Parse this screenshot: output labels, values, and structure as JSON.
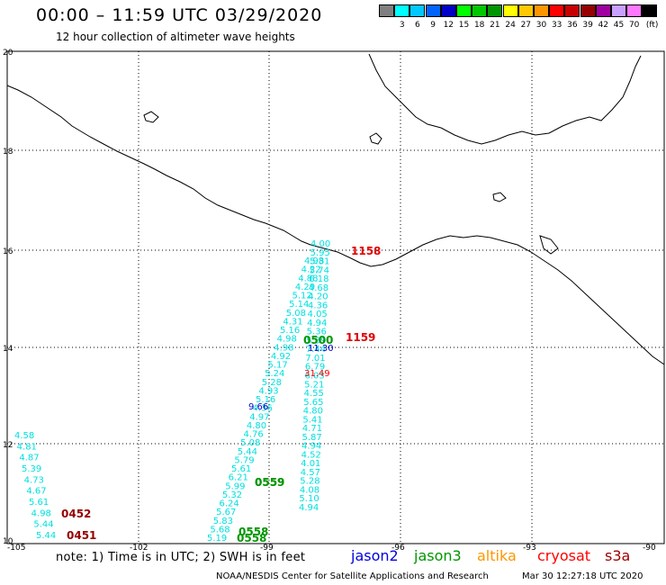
{
  "header": {
    "title": "00:00 – 11:59 UTC 03/29/2020",
    "subtitle": "12 hour collection of altimeter wave heights"
  },
  "legend": {
    "unit": "(ft)",
    "bins": [
      {
        "label": "",
        "color": "#808080"
      },
      {
        "label": "3",
        "color": "#00ffff"
      },
      {
        "label": "6",
        "color": "#00c8ff"
      },
      {
        "label": "9",
        "color": "#0064ff"
      },
      {
        "label": "12",
        "color": "#0000c8"
      },
      {
        "label": "15",
        "color": "#00ff00"
      },
      {
        "label": "18",
        "color": "#00c800"
      },
      {
        "label": "21",
        "color": "#009600"
      },
      {
        "label": "24",
        "color": "#ffff00"
      },
      {
        "label": "27",
        "color": "#ffc800"
      },
      {
        "label": "30",
        "color": "#ff9600"
      },
      {
        "label": "33",
        "color": "#ff0000"
      },
      {
        "label": "36",
        "color": "#c80000"
      },
      {
        "label": "39",
        "color": "#960000"
      },
      {
        "label": "42",
        "color": "#a000a0"
      },
      {
        "label": "45",
        "color": "#c8a0ff"
      },
      {
        "label": "70",
        "color": "#ff78ff"
      },
      {
        "label": "",
        "color": "#000000"
      }
    ]
  },
  "axes": {
    "lat_labels": [
      "20",
      "18",
      "16",
      "14",
      "12",
      "10"
    ],
    "lon_labels": [
      "-105",
      "-102",
      "-99",
      "-96",
      "-93",
      "-90"
    ]
  },
  "tracks": {
    "track_a": {
      "color": "#00e0e0",
      "values": [
        "4.00",
        "5.95",
        "5.31",
        "5.74",
        "6.18",
        "4.68",
        "4.20",
        "4.36",
        "4.05",
        "4.94",
        "5.36",
        "5.39",
        "7.44",
        "7.01",
        "6.79",
        "6.03",
        "5.21",
        "4.55",
        "5.65",
        "4.80",
        "5.41",
        "4.71",
        "5.87",
        "4.94",
        "4.52",
        "4.01",
        "4.57",
        "5.28",
        "4.08",
        "5.10",
        "4.94"
      ],
      "time_labels": [
        {
          "text": "1158",
          "color": "#e00000"
        },
        {
          "text": "1159",
          "color": "#e00000"
        },
        {
          "text": "0500",
          "color": "#009600"
        }
      ]
    },
    "track_b": {
      "color": "#00e0e0",
      "values": [
        "4.98",
        "4.22",
        "4.88",
        "4.29",
        "5.12",
        "5.14",
        "5.08",
        "4.31",
        "5.16",
        "4.98",
        "4.98",
        "4.92",
        "5.17",
        "5.24",
        "5.28",
        "4.93",
        "5.16",
        "4.36",
        "4.97",
        "4.80",
        "4.76",
        "5.08",
        "5.44",
        "5.79",
        "5.61",
        "6.21",
        "5.99",
        "5.32",
        "6.24",
        "5.67",
        "5.83",
        "5.68",
        "5.19"
      ],
      "time_labels": [
        {
          "text": "0559",
          "color": "#009600"
        },
        {
          "text": "0558",
          "color": "#009600"
        }
      ]
    },
    "track_c": {
      "color": "#00e0e0",
      "values": [
        "4.58",
        "4.81",
        "4.87",
        "5.39",
        "4.73",
        "4.67",
        "5.61",
        "4.98",
        "5.44",
        "5.44"
      ],
      "time_labels": [
        {
          "text": "0452",
          "color": "#960000"
        },
        {
          "text": "0451",
          "color": "#960000"
        }
      ]
    },
    "special_values": [
      {
        "text": "11.30",
        "color": "#0000c8"
      },
      {
        "text": "31.49",
        "color": "#ff0000"
      },
      {
        "text": "9.66",
        "color": "#0000c8"
      }
    ]
  },
  "footer": {
    "note": "note:  1) Time is in UTC;  2) SWH is in feet",
    "satellites": [
      {
        "name": "jason2",
        "color": "#0000e0"
      },
      {
        "name": "jason3",
        "color": "#009600"
      },
      {
        "name": "altika",
        "color": "#ff9600"
      },
      {
        "name": "cryosat",
        "color": "#ff0000"
      },
      {
        "name": "s3a",
        "color": "#a00000"
      }
    ],
    "credit": "NOAA/NESDIS Center for Satellite Applications and Research",
    "timestamp": "Mar 30 12:27:18 UTC 2020"
  }
}
